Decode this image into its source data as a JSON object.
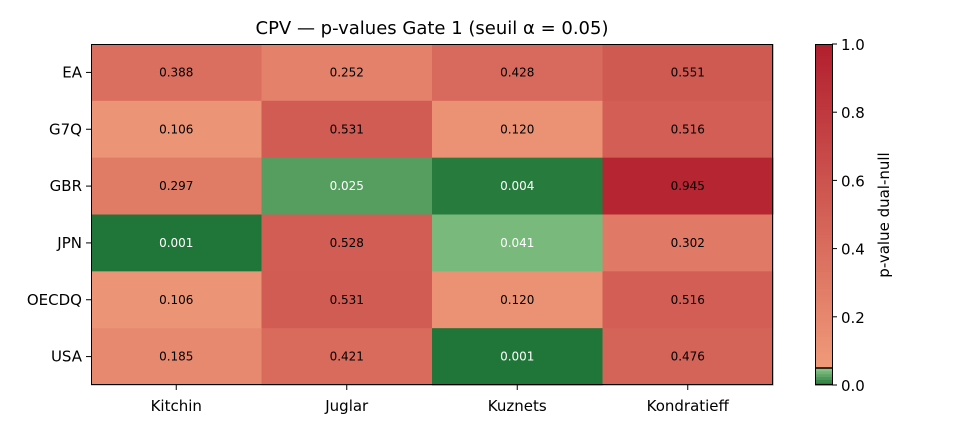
{
  "chart_data": {
    "type": "heatmap",
    "title": "CPV — p-values Gate 1 (seuil α = 0.05)",
    "columns": [
      "Kitchin",
      "Juglar",
      "Kuznets",
      "Kondratieff"
    ],
    "rows": [
      "EA",
      "G7Q",
      "GBR",
      "JPN",
      "OECDQ",
      "USA"
    ],
    "values": [
      [
        0.388,
        0.252,
        0.428,
        0.551
      ],
      [
        0.106,
        0.531,
        0.12,
        0.516
      ],
      [
        0.297,
        0.025,
        0.004,
        0.945
      ],
      [
        0.001,
        0.528,
        0.041,
        0.302
      ],
      [
        0.106,
        0.531,
        0.12,
        0.516
      ],
      [
        0.185,
        0.421,
        0.001,
        0.476
      ]
    ],
    "cell_labels": [
      [
        "0.388",
        "0.252",
        "0.428",
        "0.551"
      ],
      [
        "0.106",
        "0.531",
        "0.120",
        "0.516"
      ],
      [
        "0.297",
        "0.025",
        "0.004",
        "0.945"
      ],
      [
        "0.001",
        "0.528",
        "0.041",
        "0.302"
      ],
      [
        "0.106",
        "0.531",
        "0.120",
        "0.516"
      ],
      [
        "0.185",
        "0.421",
        "0.001",
        "0.476"
      ]
    ],
    "threshold": 0.05,
    "colorbar": {
      "label": "p-value dual-null",
      "range": [
        0,
        1
      ],
      "ticks": [
        "0.0",
        "0.2",
        "0.4",
        "0.6",
        "0.8",
        "1.0"
      ],
      "tick_values": [
        0,
        0.2,
        0.4,
        0.6,
        0.8,
        1.0
      ]
    },
    "colors": {
      "significant_low": "#1e7436",
      "significant_high": "#8dc88a",
      "nonsig_low": "#f09b7a",
      "nonsig_high": "#b21f2e"
    }
  }
}
